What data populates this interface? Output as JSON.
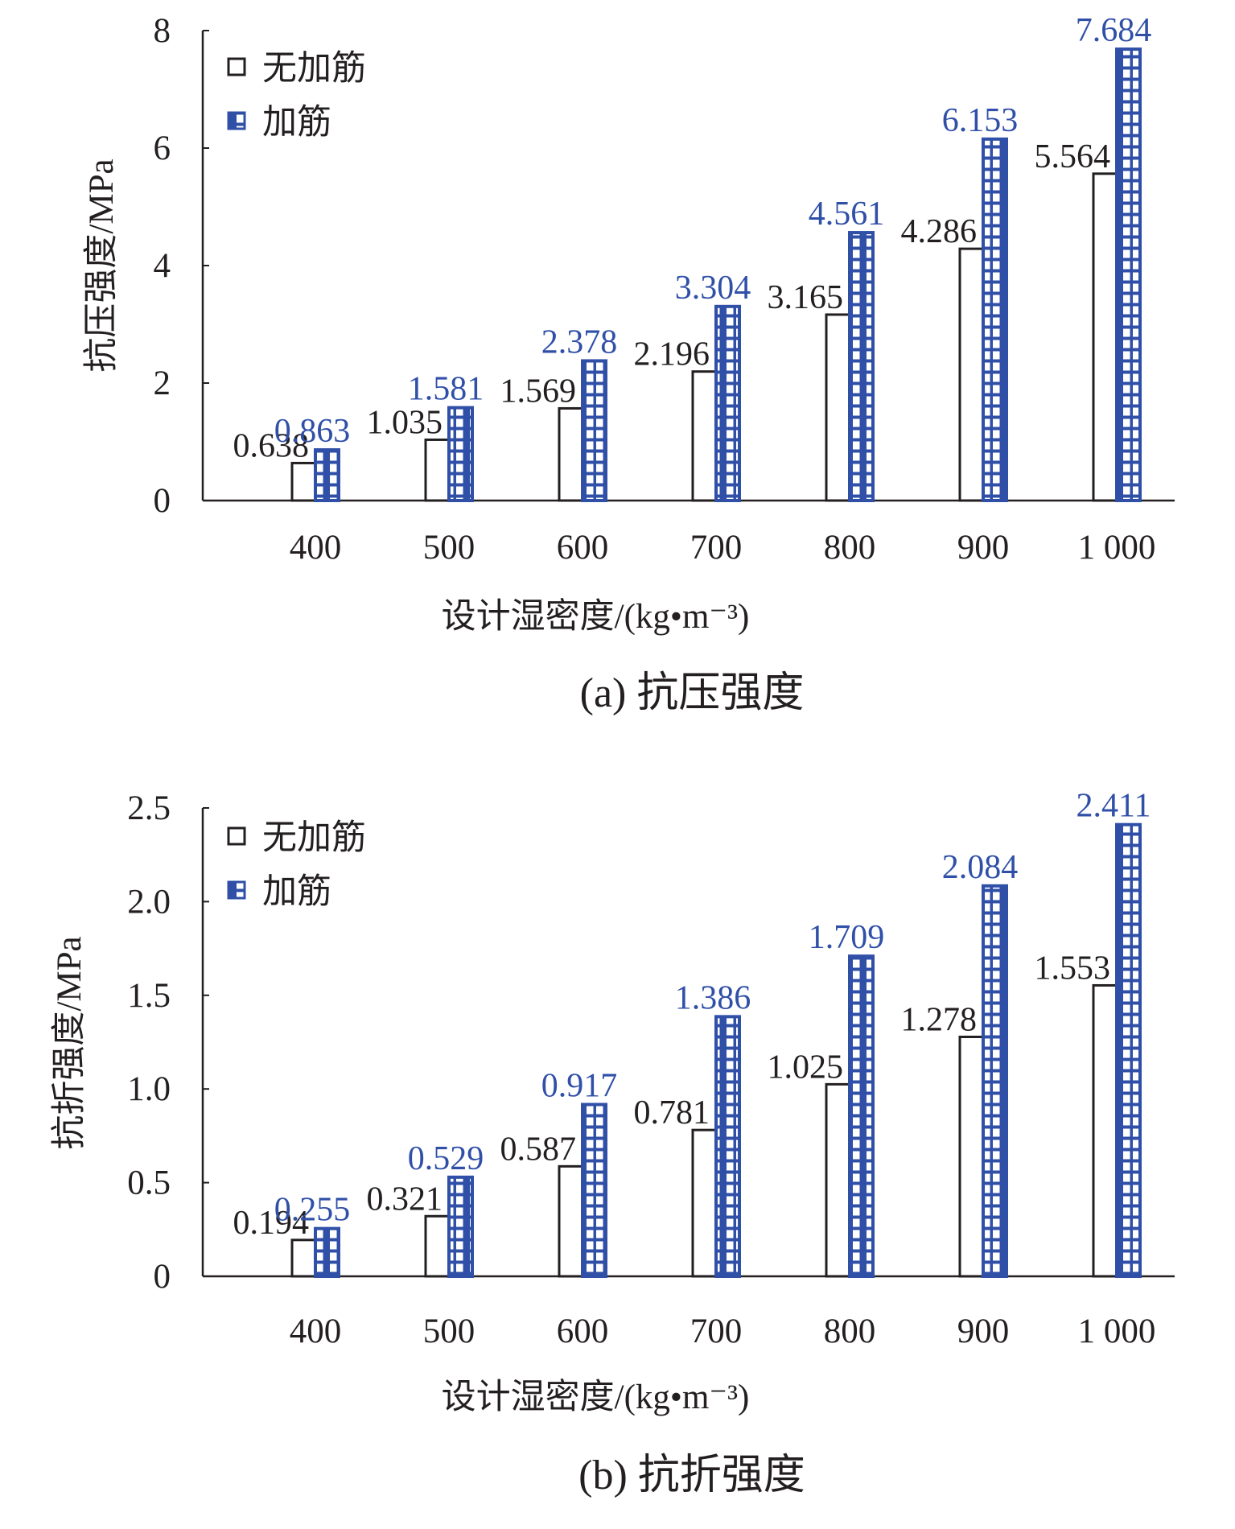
{
  "colors": {
    "plain": "#231f20",
    "reinforced": "#3050a8"
  },
  "chart_data": [
    {
      "type": "bar",
      "caption": "(a) 抗压强度",
      "xlabel": "设计湿密度/(kg•m⁻³)",
      "ylabel": "抗压强度/MPa",
      "categories": [
        "400",
        "500",
        "600",
        "700",
        "800",
        "900",
        "1 000"
      ],
      "ylim": [
        0,
        8
      ],
      "yticks": [
        "0",
        "2",
        "4",
        "6",
        "8"
      ],
      "ytick_values": [
        0,
        2,
        4,
        6,
        8
      ],
      "grid": false,
      "legend_position": "top-left",
      "series": [
        {
          "name": "无加筋",
          "values": [
            0.638,
            1.035,
            1.569,
            2.196,
            3.165,
            4.286,
            5.564
          ],
          "labels": [
            "0.638",
            "1.035",
            "1.569",
            "2.196",
            "3.165",
            "4.286",
            "5.564"
          ]
        },
        {
          "name": "加筋",
          "values": [
            0.863,
            1.581,
            2.378,
            3.304,
            4.561,
            6.153,
            7.684
          ],
          "labels": [
            "0.863",
            "1.581",
            "2.378",
            "3.304",
            "4.561",
            "6.153",
            "7.684"
          ]
        }
      ]
    },
    {
      "type": "bar",
      "caption": "(b) 抗折强度",
      "xlabel": "设计湿密度/(kg•m⁻³)",
      "ylabel": "抗折强度/MPa",
      "categories": [
        "400",
        "500",
        "600",
        "700",
        "800",
        "900",
        "1 000"
      ],
      "ylim": [
        0,
        2.5
      ],
      "yticks": [
        "0",
        "0.5",
        "1.0",
        "1.5",
        "2.0",
        "2.5"
      ],
      "ytick_values": [
        0,
        0.5,
        1.0,
        1.5,
        2.0,
        2.5
      ],
      "grid": false,
      "legend_position": "top-left",
      "series": [
        {
          "name": "无加筋",
          "values": [
            0.194,
            0.321,
            0.587,
            0.781,
            1.025,
            1.278,
            1.553
          ],
          "labels": [
            "0.194",
            "0.321",
            "0.587",
            "0.781",
            "1.025",
            "1.278",
            "1.553"
          ]
        },
        {
          "name": "加筋",
          "values": [
            0.255,
            0.529,
            0.917,
            1.386,
            1.709,
            2.084,
            2.411
          ],
          "labels": [
            "0.255",
            "0.529",
            "0.917",
            "1.386",
            "1.709",
            "2.084",
            "2.411"
          ]
        }
      ]
    }
  ]
}
